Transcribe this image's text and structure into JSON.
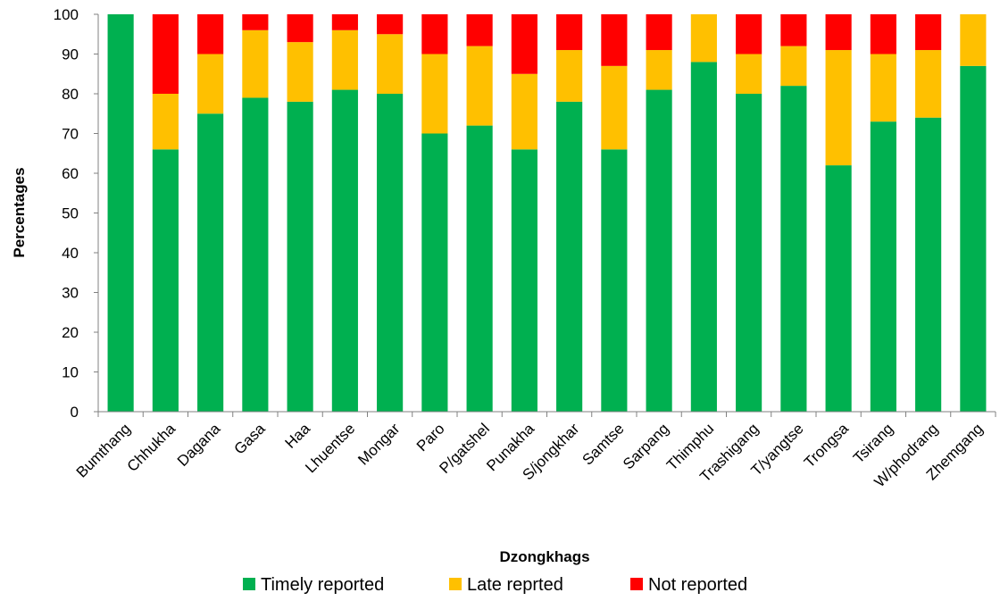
{
  "chart_data": {
    "type": "bar",
    "stacked": true,
    "categories": [
      "Bumthang",
      "Chhukha",
      "Dagana",
      "Gasa",
      "Haa",
      "Lhuentse",
      "Mongar",
      "Paro",
      "P/gatshel",
      "Punakha",
      "S/jongkhar",
      "Samtse",
      "Sarpang",
      "Thimphu",
      "Trashigang",
      "T/yangtse",
      "Trongsa",
      "Tsirang",
      "W/phodrang",
      "Zhemgang"
    ],
    "series": [
      {
        "name": "Timely reported",
        "color": "#00b050",
        "values": [
          100,
          66,
          75,
          79,
          78,
          81,
          80,
          70,
          72,
          66,
          78,
          66,
          81,
          88,
          80,
          82,
          62,
          73,
          74,
          87
        ]
      },
      {
        "name": "Late reprted",
        "color": "#ffc000",
        "values": [
          0,
          14,
          15,
          17,
          15,
          15,
          15,
          20,
          20,
          19,
          13,
          21,
          10,
          12,
          10,
          10,
          29,
          17,
          17,
          13
        ]
      },
      {
        "name": "Not reported",
        "color": "#ff0000",
        "values": [
          0,
          20,
          10,
          4,
          7,
          4,
          5,
          10,
          8,
          15,
          9,
          13,
          9,
          0,
          10,
          8,
          9,
          10,
          9,
          0
        ]
      }
    ],
    "xlabel": "Dzongkhags",
    "ylabel": "Percentages",
    "yticks": [
      "0",
      "10",
      "20",
      "30",
      "40",
      "50",
      "60",
      "70",
      "80",
      "90",
      "100"
    ],
    "ylim": [
      0,
      100
    ],
    "grid": false,
    "legend_position": "bottom"
  }
}
